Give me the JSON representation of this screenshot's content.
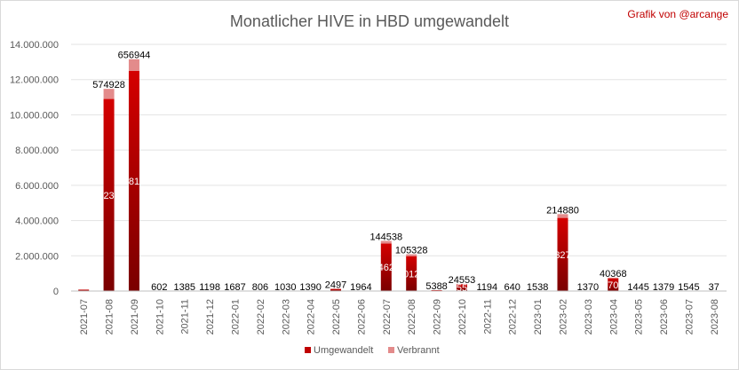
{
  "chart_data": {
    "type": "bar",
    "stacked": true,
    "title": "Monatlicher HIVE in HBD umgewandelt",
    "credit": "Grafik von @arcange",
    "xlabel": "",
    "ylabel": "",
    "ylim": [
      0,
      14000000
    ],
    "yticks": [
      0,
      2000000,
      4000000,
      6000000,
      8000000,
      10000000,
      12000000,
      14000000
    ],
    "ytick_labels": [
      "0",
      "2.000.000",
      "4.000.000",
      "6.000.000",
      "8.000.000",
      "10.000.000",
      "12.000.000",
      "14.000.000"
    ],
    "grid": true,
    "legend_position": "bottom",
    "categories": [
      "2021-07",
      "2021-08",
      "2021-09",
      "2021-10",
      "2021-11",
      "2021-12",
      "2022-01",
      "2022-02",
      "2022-03",
      "2022-04",
      "2022-05",
      "2022-06",
      "2022-07",
      "2022-08",
      "2022-09",
      "2022-10",
      "2022-11",
      "2022-12",
      "2023-01",
      "2023-02",
      "2023-03",
      "2023-04",
      "2023-05",
      "2023-06",
      "2023-07",
      "2023-08"
    ],
    "series": [
      {
        "name": "Umgewandelt",
        "color": "#c00000",
        "values": [
          80000,
          10900000,
          12500000,
          0,
          0,
          0,
          0,
          0,
          0,
          0,
          120000,
          0,
          2700000,
          1980000,
          50000,
          380000,
          0,
          0,
          0,
          4150000,
          0,
          720000,
          0,
          0,
          0,
          0
        ]
      },
      {
        "name": "Verbrannt",
        "color": "#e38b8b",
        "values": [
          0,
          574928,
          656944,
          602,
          1385,
          1198,
          1687,
          806,
          1030,
          1390,
          2497,
          1964,
          144538,
          105328,
          5388,
          24553,
          1194,
          640,
          1538,
          214880,
          1370,
          40368,
          1445,
          1379,
          1545,
          37
        ]
      }
    ],
    "data_labels": [
      "",
      "574928",
      "656944",
      "602",
      "1385",
      "1198",
      "1687",
      "806",
      "1030",
      "1390",
      "2497",
      "1964",
      "144538",
      "105328",
      "5388",
      "24553",
      "1194",
      "640",
      "1538",
      "214880",
      "1370",
      "40368",
      "1445",
      "1379",
      "1545",
      "37"
    ],
    "inner_labels": [
      "",
      "23",
      "81",
      "",
      "",
      "",
      "",
      "",
      "",
      "",
      "",
      "",
      "462",
      "012",
      "",
      "55",
      "",
      "",
      "",
      "327",
      "",
      "70",
      "",
      "",
      "",
      ""
    ]
  }
}
